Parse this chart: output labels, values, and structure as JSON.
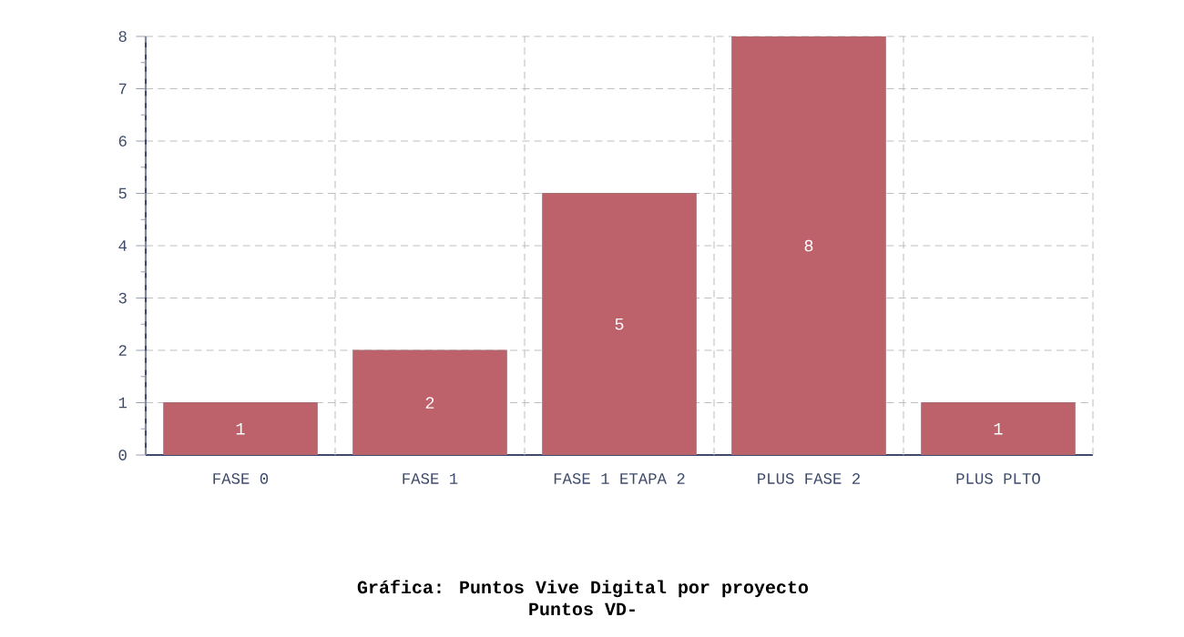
{
  "chart_data": {
    "type": "bar",
    "title": "Gráfica: Puntos Vive Digital por proyecto",
    "subtitle": "Puntos VD-",
    "categories": [
      "FASE 0",
      "FASE 1",
      "FASE 1 ETAPA 2",
      "PLUS FASE 2",
      "PLUS PLTO"
    ],
    "values": [
      1,
      2,
      5,
      8,
      1
    ],
    "color": "#bd626b",
    "ylim": [
      0,
      8
    ],
    "yticks": [
      0,
      1,
      2,
      3,
      4,
      5,
      6,
      7,
      8
    ],
    "grid": true,
    "data_labels": true
  }
}
